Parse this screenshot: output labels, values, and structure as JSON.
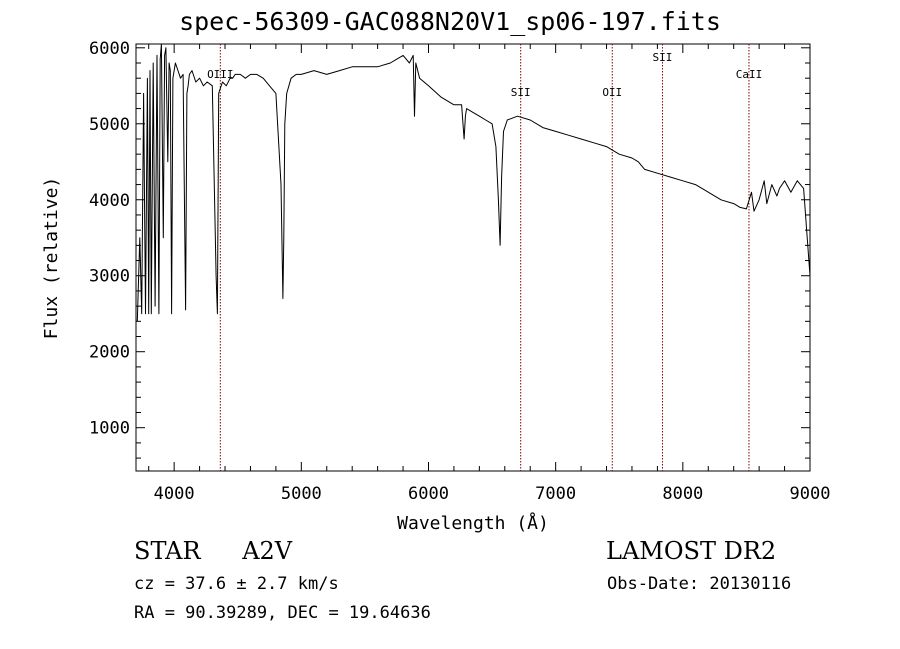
{
  "header": {
    "title": "spec-56309-GAC088N20V1_sp06-197.fits"
  },
  "info": {
    "object_class": "STAR",
    "subclass": "A2V",
    "survey": "LAMOST DR2",
    "cz": "cz = 37.6 ± 2.7 km/s",
    "obs_date": "Obs-Date: 20130116",
    "radec": "RA =  90.39289, DEC =  19.64636"
  },
  "chart_data": {
    "type": "line",
    "title": "spec-56309-GAC088N20V1_sp06-197.fits",
    "xlabel": "Wavelength (Å)",
    "ylabel": "Flux (relative)",
    "xlim": [
      3700,
      9000
    ],
    "ylim": [
      430,
      6050
    ],
    "x_ticks": [
      4000,
      5000,
      6000,
      7000,
      8000,
      9000
    ],
    "x_tick_labels": [
      "4000",
      "5000",
      "6000",
      "7000",
      "8000",
      "9000"
    ],
    "y_ticks": [
      1000,
      2000,
      3000,
      4000,
      5000,
      6000
    ],
    "y_tick_labels": [
      "1000",
      "2000",
      "3000",
      "4000",
      "5000",
      "6000"
    ],
    "series": [
      {
        "color": "#000000",
        "x": [
          3710,
          3730,
          3745,
          3760,
          3775,
          3790,
          3800,
          3810,
          3820,
          3835,
          3850,
          3865,
          3880,
          3890,
          3900,
          3915,
          3925,
          3935,
          3950,
          3960,
          3970,
          3980,
          3990,
          4010,
          4030,
          4050,
          4070,
          4090,
          4100,
          4110,
          4120,
          4140,
          4170,
          4200,
          4230,
          4260,
          4300,
          4330,
          4340,
          4350,
          4360,
          4380,
          4410,
          4440,
          4460,
          4480,
          4520,
          4560,
          4600,
          4650,
          4700,
          4750,
          4800,
          4840,
          4855,
          4862,
          4870,
          4885,
          4920,
          4960,
          5000,
          5100,
          5200,
          5300,
          5400,
          5500,
          5600,
          5700,
          5750,
          5800,
          5850,
          5880,
          5890,
          5900,
          5930,
          6000,
          6100,
          6200,
          6260,
          6280,
          6290,
          6300,
          6350,
          6400,
          6450,
          6500,
          6530,
          6550,
          6563,
          6575,
          6590,
          6620,
          6700,
          6800,
          6900,
          7000,
          7100,
          7200,
          7300,
          7400,
          7500,
          7600,
          7650,
          7700,
          7800,
          7900,
          8000,
          8100,
          8200,
          8300,
          8400,
          8450,
          8500,
          8540,
          8560,
          8600,
          8640,
          8660,
          8700,
          8740,
          8760,
          8800,
          8850,
          8900,
          8950,
          9000
        ],
        "values": [
          2400,
          3500,
          2500,
          5400,
          2500,
          5600,
          2500,
          5700,
          2500,
          5800,
          2600,
          5900,
          2500,
          5850,
          6050,
          3500,
          5900,
          6000,
          4500,
          5800,
          5700,
          2500,
          5600,
          5800,
          5700,
          5600,
          5650,
          2550,
          5400,
          5500,
          5650,
          5700,
          5550,
          5600,
          5500,
          5550,
          5500,
          3000,
          2500,
          5400,
          5450,
          5550,
          5500,
          5600,
          5600,
          5650,
          5650,
          5600,
          5650,
          5650,
          5600,
          5500,
          5400,
          4200,
          2700,
          3500,
          5000,
          5400,
          5600,
          5650,
          5650,
          5700,
          5650,
          5700,
          5750,
          5750,
          5750,
          5800,
          5850,
          5900,
          5800,
          5900,
          5100,
          5800,
          5600,
          5500,
          5350,
          5250,
          5250,
          4800,
          5100,
          5200,
          5150,
          5100,
          5050,
          5000,
          4700,
          4000,
          3400,
          4300,
          4900,
          5050,
          5100,
          5050,
          4950,
          4900,
          4850,
          4800,
          4750,
          4700,
          4600,
          4550,
          4500,
          4400,
          4350,
          4300,
          4250,
          4200,
          4100,
          4000,
          3950,
          3900,
          3880,
          4100,
          3850,
          4000,
          4250,
          3950,
          4200,
          4050,
          4150,
          4250,
          4100,
          4250,
          4150,
          3000
        ]
      }
    ],
    "vlines": [
      {
        "x": 4363,
        "label": "OIII"
      },
      {
        "x": 6725,
        "label": "SII"
      },
      {
        "x": 7445,
        "label": "OII"
      },
      {
        "x": 7840,
        "label": "SII"
      },
      {
        "x": 8520,
        "label": "CaII"
      }
    ],
    "vline_color": "#8b0000"
  }
}
